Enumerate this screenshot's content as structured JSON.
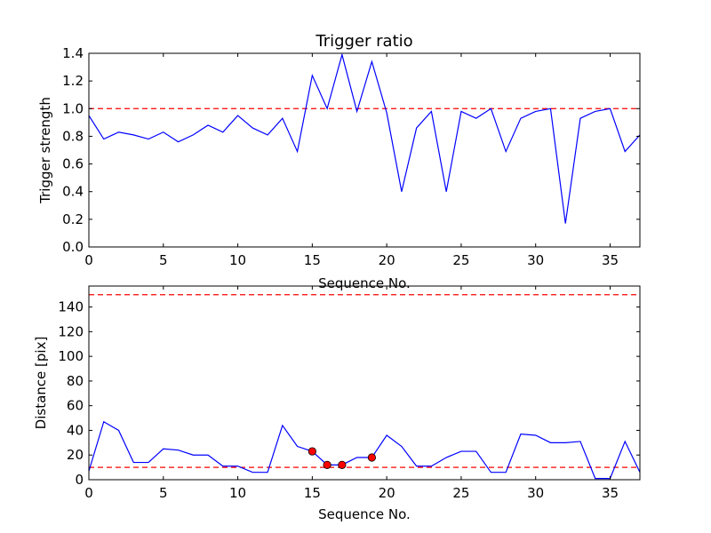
{
  "chart_data": [
    {
      "type": "line",
      "title": "Trigger ratio",
      "xlabel": "Sequence No.",
      "ylabel": "Trigger strength",
      "xlim": [
        0,
        37
      ],
      "ylim": [
        0.0,
        1.4
      ],
      "xticks": [
        "0",
        "5",
        "10",
        "15",
        "20",
        "25",
        "30",
        "35"
      ],
      "xtick_values": [
        0,
        5,
        10,
        15,
        20,
        25,
        30,
        35
      ],
      "yticks": [
        "0.0",
        "0.2",
        "0.4",
        "0.6",
        "0.8",
        "1.0",
        "1.2",
        "1.4"
      ],
      "ytick_values": [
        0.0,
        0.2,
        0.4,
        0.6,
        0.8,
        1.0,
        1.2,
        1.4
      ],
      "grid": false,
      "line_color": "#0000ff",
      "threshold_color": "#ff0000",
      "thresholds": [
        1.0
      ],
      "x": [
        0,
        1,
        2,
        3,
        4,
        5,
        6,
        7,
        8,
        9,
        10,
        11,
        12,
        13,
        14,
        15,
        16,
        17,
        18,
        19,
        20,
        21,
        22,
        23,
        24,
        25,
        26,
        27,
        28,
        29,
        30,
        31,
        32,
        33,
        34,
        35,
        36,
        37
      ],
      "y": [
        0.95,
        0.78,
        0.83,
        0.81,
        0.78,
        0.83,
        0.76,
        0.81,
        0.88,
        0.83,
        0.95,
        0.86,
        0.81,
        0.93,
        0.69,
        1.24,
        1.0,
        1.39,
        0.98,
        1.34,
        0.97,
        0.4,
        0.86,
        0.98,
        0.4,
        0.98,
        0.93,
        1.0,
        0.69,
        0.93,
        0.98,
        1.0,
        0.17,
        0.93,
        0.98,
        1.0,
        0.69,
        0.81
      ]
    },
    {
      "type": "line",
      "xlabel": "Sequence No.",
      "ylabel": "Distance [pix]",
      "xlim": [
        0,
        37
      ],
      "ylim": [
        0,
        157
      ],
      "xticks": [
        "0",
        "5",
        "10",
        "15",
        "20",
        "25",
        "30",
        "35"
      ],
      "xtick_values": [
        0,
        5,
        10,
        15,
        20,
        25,
        30,
        35
      ],
      "yticks": [
        "0",
        "20",
        "40",
        "60",
        "80",
        "100",
        "120",
        "140"
      ],
      "ytick_values": [
        0,
        20,
        40,
        60,
        80,
        100,
        120,
        140
      ],
      "grid": false,
      "line_color": "#0000ff",
      "threshold_color": "#ff0000",
      "marker_color": "#ff0000",
      "thresholds": [
        10,
        150
      ],
      "x": [
        0,
        1,
        2,
        3,
        4,
        5,
        6,
        7,
        8,
        9,
        10,
        11,
        12,
        13,
        14,
        15,
        16,
        17,
        18,
        19,
        20,
        21,
        22,
        23,
        24,
        25,
        26,
        27,
        28,
        29,
        30,
        31,
        32,
        33,
        34,
        35,
        36,
        37
      ],
      "y": [
        7,
        47,
        40,
        14,
        14,
        25,
        24,
        20,
        20,
        11,
        11,
        6,
        6,
        44,
        27,
        23,
        12,
        12,
        18,
        18,
        36,
        27,
        11,
        11,
        18,
        23,
        23,
        6,
        6,
        37,
        36,
        30,
        30,
        31,
        1,
        1,
        31,
        6
      ],
      "highlight_points": [
        {
          "x": 15,
          "y": 23
        },
        {
          "x": 16,
          "y": 12
        },
        {
          "x": 17,
          "y": 12
        },
        {
          "x": 19,
          "y": 18
        }
      ]
    }
  ]
}
